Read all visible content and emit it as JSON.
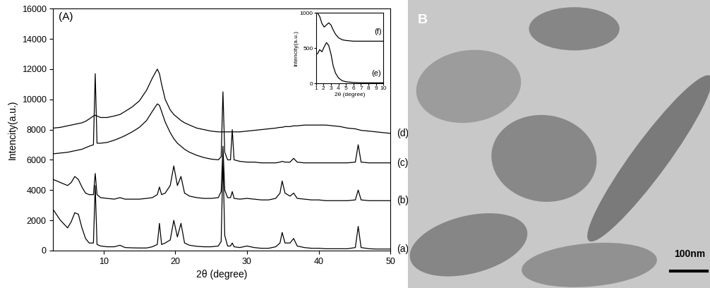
{
  "chart_data": [
    {
      "type": "line",
      "title": "(A)",
      "x_label": "2θ (degree)",
      "y_label": "Intencity(a.u.)",
      "x": [
        3,
        4,
        5,
        5.5,
        6,
        6.5,
        7,
        7.5,
        8,
        8.6,
        8.85,
        9.1,
        9.6,
        10.5,
        11.5,
        12.3,
        13,
        14,
        15,
        16,
        16.8,
        17.5,
        17.8,
        18.1,
        18.6,
        19.3,
        19.8,
        20.3,
        20.8,
        21.3,
        22,
        23,
        24,
        25,
        26,
        26.4,
        26.65,
        26.9,
        27.3,
        27.7,
        27.95,
        28.2,
        29,
        30,
        31,
        32,
        33,
        34,
        34.6,
        34.9,
        35.3,
        36,
        36.5,
        37,
        38,
        39,
        40,
        41,
        42,
        43,
        44,
        45.1,
        45.5,
        45.9,
        47,
        48,
        49,
        50
      ],
      "series": [
        {
          "name": "(a)",
          "color": "#000000",
          "values": [
            2700,
            2000,
            1500,
            1900,
            2500,
            2400,
            1500,
            800,
            500,
            500,
            4300,
            400,
            300,
            250,
            250,
            350,
            200,
            180,
            170,
            170,
            250,
            400,
            1800,
            400,
            500,
            700,
            2000,
            900,
            1800,
            500,
            350,
            280,
            250,
            250,
            300,
            600,
            6000,
            1000,
            300,
            300,
            500,
            250,
            200,
            300,
            200,
            150,
            150,
            250,
            500,
            1200,
            500,
            500,
            800,
            300,
            200,
            150,
            150,
            120,
            120,
            120,
            120,
            200,
            1600,
            200,
            120,
            100,
            100,
            100
          ]
        },
        {
          "name": "(b)",
          "color": "#000000",
          "values": [
            4700,
            4500,
            4300,
            4500,
            4900,
            4700,
            4200,
            3800,
            3700,
            3700,
            5100,
            3700,
            3500,
            3450,
            3400,
            3500,
            3400,
            3400,
            3400,
            3450,
            3500,
            3700,
            4200,
            3700,
            3800,
            4300,
            5600,
            4300,
            4900,
            3800,
            3600,
            3500,
            3450,
            3450,
            3500,
            3900,
            6900,
            4000,
            3500,
            3500,
            3900,
            3450,
            3400,
            3450,
            3400,
            3350,
            3350,
            3450,
            3800,
            4600,
            3800,
            3600,
            3800,
            3450,
            3400,
            3350,
            3350,
            3300,
            3300,
            3300,
            3300,
            3350,
            4000,
            3350,
            3300,
            3300,
            3300,
            3300
          ]
        },
        {
          "name": "(c)",
          "color": "#000000",
          "values": [
            6400,
            6450,
            6500,
            6550,
            6600,
            6650,
            6700,
            6800,
            6900,
            7000,
            11700,
            7100,
            7100,
            7150,
            7300,
            7450,
            7600,
            7850,
            8150,
            8600,
            9200,
            9700,
            9600,
            9200,
            8500,
            7800,
            7400,
            7100,
            6900,
            6700,
            6500,
            6300,
            6150,
            6050,
            6000,
            6200,
            10500,
            6500,
            6000,
            6000,
            8000,
            6000,
            5900,
            5850,
            5850,
            5800,
            5800,
            5800,
            5850,
            5900,
            5850,
            5850,
            6100,
            5850,
            5800,
            5800,
            5800,
            5800,
            5800,
            5800,
            5800,
            5850,
            7000,
            5850,
            5800,
            5800,
            5800,
            5800
          ]
        },
        {
          "name": "(d)",
          "color": "#000000",
          "values": [
            8100,
            8150,
            8250,
            8300,
            8350,
            8400,
            8450,
            8550,
            8700,
            8900,
            8950,
            8900,
            8800,
            8800,
            8900,
            9000,
            9200,
            9500,
            9900,
            10600,
            11400,
            12000,
            11700,
            11000,
            10000,
            9300,
            9000,
            8800,
            8600,
            8450,
            8300,
            8100,
            8000,
            7900,
            7850,
            7850,
            7850,
            7850,
            7850,
            7850,
            7850,
            7850,
            7850,
            7900,
            7950,
            8000,
            8050,
            8100,
            8150,
            8150,
            8200,
            8200,
            8250,
            8250,
            8300,
            8300,
            8300,
            8300,
            8250,
            8200,
            8100,
            8050,
            8000,
            7950,
            7900,
            7850,
            7800,
            7750
          ]
        }
      ],
      "xlim": [
        3,
        50
      ],
      "ylim": [
        0,
        16000
      ],
      "xticks": [
        10,
        20,
        30,
        40,
        50
      ],
      "yticks": [
        0,
        2000,
        4000,
        6000,
        8000,
        10000,
        12000,
        14000,
        16000
      ]
    },
    {
      "type": "line",
      "x_label": "2θ (degree)",
      "y_label": "Intencity(a.u.)",
      "x": [
        1.2,
        1.5,
        1.8,
        2.1,
        2.4,
        2.7,
        3.0,
        3.3,
        3.6,
        4.0,
        4.5,
        5,
        6,
        7,
        8,
        9,
        10
      ],
      "series": [
        {
          "name": "(e)",
          "color": "#000000",
          "values": [
            420,
            480,
            450,
            520,
            580,
            540,
            420,
            250,
            150,
            80,
            40,
            25,
            15,
            10,
            10,
            10,
            10
          ]
        },
        {
          "name": "(f)",
          "color": "#000000",
          "values": [
            1000,
            950,
            850,
            800,
            830,
            860,
            830,
            760,
            700,
            650,
            620,
            610,
            600,
            600,
            600,
            600,
            600
          ]
        }
      ],
      "xlim": [
        1,
        10
      ],
      "ylim": [
        0,
        1000
      ],
      "xticks": [
        1,
        2,
        3,
        4,
        5,
        6,
        7,
        8,
        9,
        10
      ],
      "yticks": [
        0,
        500,
        1000
      ]
    }
  ],
  "panel_b": {
    "label": "B",
    "scale_bar": "100nm"
  }
}
